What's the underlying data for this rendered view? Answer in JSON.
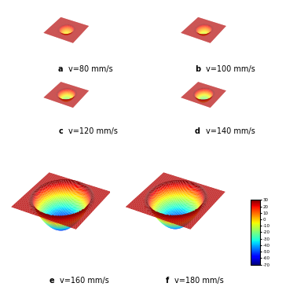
{
  "chart_data": [
    {
      "type": "surface",
      "label": "a",
      "title": "v=80 mm/s",
      "level": 25,
      "depth": -5
    },
    {
      "type": "surface",
      "label": "b",
      "title": "v=100 mm/s",
      "level": 25,
      "depth": -10
    },
    {
      "type": "surface",
      "label": "c",
      "title": "v=120 mm/s",
      "level": 25,
      "depth": -20
    },
    {
      "type": "surface",
      "label": "d",
      "title": "v=140 mm/s",
      "level": 25,
      "depth": -25
    },
    {
      "type": "surface",
      "label": "e",
      "title": "v=160 mm/s",
      "level": 25,
      "depth": -65
    },
    {
      "type": "surface",
      "label": "f",
      "title": "v=180 mm/s",
      "level": 25,
      "depth": -60
    }
  ],
  "colorbar": {
    "range": [
      -70,
      30
    ],
    "ticks": [
      30,
      20,
      10,
      0,
      -10,
      -20,
      -30,
      -40,
      -50,
      -60,
      -70
    ]
  }
}
